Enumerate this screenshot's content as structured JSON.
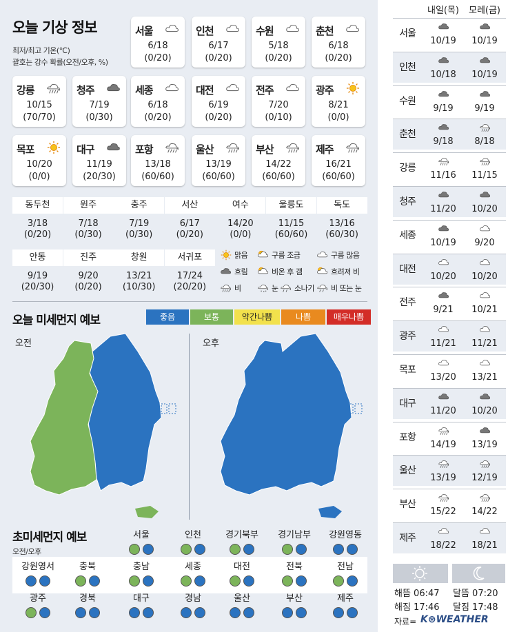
{
  "title": "오늘 기상 정보",
  "subtitle1": "최저/최고 기온(℃)",
  "subtitle2": "괄호는 강수 확률(오전/오후, %)",
  "cards": [
    {
      "name": "서울",
      "temp": "6/18",
      "prob": "(0/20)",
      "icon": "cloudy"
    },
    {
      "name": "인천",
      "temp": "6/17",
      "prob": "(0/20)",
      "icon": "cloudy"
    },
    {
      "name": "수원",
      "temp": "5/18",
      "prob": "(0/20)",
      "icon": "cloudy"
    },
    {
      "name": "춘천",
      "temp": "6/18",
      "prob": "(0/20)",
      "icon": "cloudy"
    },
    {
      "name": "강릉",
      "temp": "10/15",
      "prob": "(70/70)",
      "icon": "rain"
    },
    {
      "name": "청주",
      "temp": "7/19",
      "prob": "(0/30)",
      "icon": "overcast"
    },
    {
      "name": "세종",
      "temp": "6/18",
      "prob": "(0/20)",
      "icon": "cloudy"
    },
    {
      "name": "대전",
      "temp": "6/19",
      "prob": "(0/20)",
      "icon": "cloudy"
    },
    {
      "name": "전주",
      "temp": "7/20",
      "prob": "(0/10)",
      "icon": "cloudy"
    },
    {
      "name": "광주",
      "temp": "8/21",
      "prob": "(0/0)",
      "icon": "sunny"
    },
    {
      "name": "목포",
      "temp": "10/20",
      "prob": "(0/0)",
      "icon": "sunny"
    },
    {
      "name": "대구",
      "temp": "11/19",
      "prob": "(20/30)",
      "icon": "overcast"
    },
    {
      "name": "포항",
      "temp": "13/18",
      "prob": "(60/60)",
      "icon": "rain"
    },
    {
      "name": "울산",
      "temp": "13/19",
      "prob": "(60/60)",
      "icon": "rain"
    },
    {
      "name": "부산",
      "temp": "14/22",
      "prob": "(60/60)",
      "icon": "rain"
    },
    {
      "name": "제주",
      "temp": "16/21",
      "prob": "(60/60)",
      "icon": "rain"
    }
  ],
  "small_cities": [
    {
      "name": "동두천",
      "temp": "3/18",
      "prob": "(0/20)"
    },
    {
      "name": "원주",
      "temp": "7/18",
      "prob": "(0/30)"
    },
    {
      "name": "충주",
      "temp": "7/19",
      "prob": "(0/30)"
    },
    {
      "name": "서산",
      "temp": "6/17",
      "prob": "(0/20)"
    },
    {
      "name": "여수",
      "temp": "14/20",
      "prob": "(0/0)"
    },
    {
      "name": "울릉도",
      "temp": "11/15",
      "prob": "(60/60)"
    },
    {
      "name": "독도",
      "temp": "13/16",
      "prob": "(60/30)"
    },
    {
      "name": "안동",
      "temp": "9/19",
      "prob": "(20/30)"
    },
    {
      "name": "진주",
      "temp": "9/20",
      "prob": "(0/20)"
    },
    {
      "name": "창원",
      "temp": "13/21",
      "prob": "(10/30)"
    },
    {
      "name": "서귀포",
      "temp": "17/24",
      "prob": "(20/20)"
    }
  ],
  "legend": [
    {
      "icon": "sunny",
      "label": "맑음"
    },
    {
      "icon": "partly",
      "label": "구름 조금"
    },
    {
      "icon": "mostly",
      "label": "구름 많음"
    },
    {
      "icon": "overcast",
      "label": "흐림"
    },
    {
      "icon": "rain_sun",
      "label": "비온 후 갬"
    },
    {
      "icon": "sun_rain",
      "label": "흐려져 비"
    },
    {
      "icon": "rain",
      "label": "비"
    },
    {
      "icon": "snow",
      "label": "눈"
    },
    {
      "icon": "shower",
      "label": "소나기"
    },
    {
      "icon": "sleet",
      "label": "비 또는 눈"
    }
  ],
  "dust_title": "오늘 미세먼지 예보",
  "dust_levels": [
    {
      "label": "좋음",
      "color": "#2b73c0"
    },
    {
      "label": "보통",
      "color": "#7cb45a"
    },
    {
      "label": "약간나쁨",
      "color": "#f2e14c"
    },
    {
      "label": "나쁨",
      "color": "#e98a1f"
    },
    {
      "label": "매우나쁨",
      "color": "#d32d27"
    }
  ],
  "am_label": "오전",
  "pm_label": "오후",
  "ultra_title": "초미세먼지 예보",
  "ultra_sub": "오전/오후",
  "ultra": [
    {
      "name": "서울",
      "am": "good_green",
      "pm": "blue"
    },
    {
      "name": "인천",
      "am": "green",
      "pm": "blue"
    },
    {
      "name": "경기북부",
      "am": "green",
      "pm": "blue"
    },
    {
      "name": "경기남부",
      "am": "green",
      "pm": "blue"
    },
    {
      "name": "강원영동",
      "am": "blue",
      "pm": "blue"
    },
    {
      "name": "강원영서",
      "am": "blue",
      "pm": "blue"
    },
    {
      "name": "충북",
      "am": "green",
      "pm": "blue"
    },
    {
      "name": "충남",
      "am": "green",
      "pm": "blue"
    },
    {
      "name": "세종",
      "am": "green",
      "pm": "blue"
    },
    {
      "name": "대전",
      "am": "green",
      "pm": "blue"
    },
    {
      "name": "전북",
      "am": "green",
      "pm": "blue"
    },
    {
      "name": "전남",
      "am": "green",
      "pm": "blue"
    },
    {
      "name": "광주",
      "am": "green",
      "pm": "blue"
    },
    {
      "name": "경북",
      "am": "blue",
      "pm": "blue"
    },
    {
      "name": "대구",
      "am": "blue",
      "pm": "blue"
    },
    {
      "name": "경남",
      "am": "blue",
      "pm": "blue"
    },
    {
      "name": "울산",
      "am": "blue",
      "pm": "blue"
    },
    {
      "name": "부산",
      "am": "blue",
      "pm": "blue"
    },
    {
      "name": "제주",
      "am": "blue",
      "pm": "blue"
    }
  ],
  "right_header": {
    "day1": "내일(목)",
    "day2": "모레(금)"
  },
  "forecast": [
    {
      "city": "서울",
      "d1": "10/19",
      "d2": "10/19",
      "i1": "overcast",
      "i2": "overcast"
    },
    {
      "city": "인천",
      "d1": "10/18",
      "d2": "10/19",
      "i1": "overcast",
      "i2": "overcast"
    },
    {
      "city": "수원",
      "d1": "9/19",
      "d2": "9/19",
      "i1": "overcast",
      "i2": "overcast"
    },
    {
      "city": "춘천",
      "d1": "9/18",
      "d2": "8/18",
      "i1": "overcast",
      "i2": "rain"
    },
    {
      "city": "강릉",
      "d1": "11/16",
      "d2": "11/15",
      "i1": "rain",
      "i2": "rain"
    },
    {
      "city": "청주",
      "d1": "11/20",
      "d2": "10/20",
      "i1": "overcast",
      "i2": "overcast"
    },
    {
      "city": "세종",
      "d1": "10/19",
      "d2": "9/20",
      "i1": "overcast",
      "i2": "cloudy"
    },
    {
      "city": "대전",
      "d1": "10/20",
      "d2": "10/20",
      "i1": "cloudy",
      "i2": "cloudy"
    },
    {
      "city": "전주",
      "d1": "9/21",
      "d2": "10/21",
      "i1": "overcast",
      "i2": "cloudy"
    },
    {
      "city": "광주",
      "d1": "11/21",
      "d2": "11/21",
      "i1": "cloudy",
      "i2": "cloudy"
    },
    {
      "city": "목포",
      "d1": "13/20",
      "d2": "13/21",
      "i1": "cloudy",
      "i2": "cloudy"
    },
    {
      "city": "대구",
      "d1": "11/20",
      "d2": "10/20",
      "i1": "overcast",
      "i2": "overcast"
    },
    {
      "city": "포항",
      "d1": "14/19",
      "d2": "13/19",
      "i1": "rain",
      "i2": "overcast"
    },
    {
      "city": "울산",
      "d1": "13/19",
      "d2": "12/19",
      "i1": "rain",
      "i2": "rain"
    },
    {
      "city": "부산",
      "d1": "15/22",
      "d2": "14/22",
      "i1": "rain",
      "i2": "rain"
    },
    {
      "city": "제주",
      "d1": "18/22",
      "d2": "18/21",
      "i1": "cloudy",
      "i2": "cloudy"
    }
  ],
  "sunrise": "해뜸 06:47",
  "sunset": "해짐 17:46",
  "moonrise": "달뜸 07:20",
  "moonset": "달짐 17:48",
  "source_label": "자료=",
  "source_brand": "K⊛WEATHER"
}
